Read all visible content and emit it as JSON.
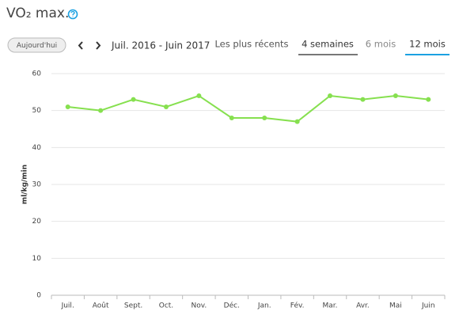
{
  "header": {
    "title": "VO₂ max."
  },
  "toolbar": {
    "today": "Aujourd'hui",
    "range": "Juil. 2016 - Juin 2017",
    "tabs": [
      "Les plus récents",
      "4 semaines",
      "6 mois",
      "12 mois"
    ]
  },
  "chart_data": {
    "type": "line",
    "y_label": "ml/kg/min",
    "categories": [
      "Juil.",
      "Août",
      "Sept.",
      "Oct.",
      "Nov.",
      "Déc.",
      "Jan.",
      "Fév.",
      "Mar.",
      "Avr.",
      "Mai",
      "Juin"
    ],
    "values": [
      51,
      50,
      53,
      51,
      54,
      48,
      48,
      47,
      54,
      53,
      54,
      53
    ],
    "color": "#86e04f",
    "ylim": [
      0,
      60
    ],
    "yticks": [
      0,
      10,
      20,
      30,
      40,
      50,
      60
    ],
    "grid": true
  }
}
